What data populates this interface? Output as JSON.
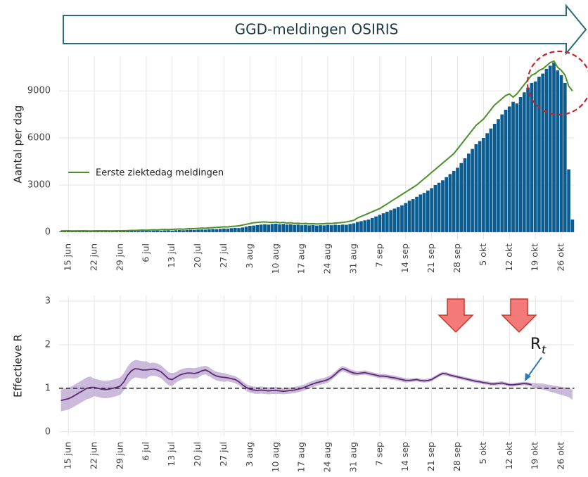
{
  "chart_data": [
    {
      "type": "bar",
      "title": "GGD-meldingen OSIRIS",
      "ylabel": "Aantal per dag",
      "categories": [
        null,
        null,
        "15 jun",
        null,
        null,
        null,
        null,
        null,
        null,
        "22 jun",
        null,
        null,
        null,
        null,
        null,
        null,
        "29 jun",
        null,
        null,
        null,
        null,
        null,
        null,
        "6 jul",
        null,
        null,
        null,
        null,
        null,
        null,
        "13 jul",
        null,
        null,
        null,
        null,
        null,
        null,
        "20 jul",
        null,
        null,
        null,
        null,
        null,
        null,
        "27 jul",
        null,
        null,
        null,
        null,
        null,
        null,
        "3 aug",
        null,
        null,
        null,
        null,
        null,
        null,
        "10 aug",
        null,
        null,
        null,
        null,
        null,
        null,
        "17 aug",
        null,
        null,
        null,
        null,
        null,
        null,
        "24 aug",
        null,
        null,
        null,
        null,
        null,
        null,
        "31 aug",
        null,
        null,
        null,
        null,
        null,
        null,
        "7 sep",
        null,
        null,
        null,
        null,
        null,
        null,
        "14 sep",
        null,
        null,
        null,
        null,
        null,
        null,
        "21 sep",
        null,
        null,
        null,
        null,
        null,
        null,
        "28 sep",
        null,
        null,
        null,
        null,
        null,
        null,
        "5 okt",
        null,
        null,
        null,
        null,
        null,
        null,
        "12 okt",
        null,
        null,
        null,
        null,
        null,
        null,
        "19 okt",
        null,
        null,
        null,
        null,
        null,
        null,
        "26 okt",
        null,
        null,
        null
      ],
      "ylim": [
        -450,
        11200
      ],
      "yticks": [
        0,
        3000,
        6000,
        9000
      ],
      "grid": true,
      "legend": "left",
      "series": [
        {
          "type": "bar",
          "color": "#0b5d91",
          "values": [
            50,
            55,
            60,
            50,
            55,
            60,
            55,
            50,
            60,
            55,
            50,
            60,
            55,
            60,
            50,
            55,
            60,
            65,
            70,
            75,
            80,
            70,
            85,
            90,
            80,
            95,
            100,
            90,
            105,
            110,
            100,
            120,
            130,
            120,
            140,
            150,
            140,
            160,
            170,
            160,
            180,
            200,
            190,
            210,
            230,
            220,
            250,
            270,
            260,
            300,
            350,
            400,
            420,
            450,
            480,
            500,
            480,
            520,
            540,
            500,
            520,
            480,
            500,
            460,
            480,
            440,
            460,
            430,
            450,
            420,
            440,
            430,
            460,
            440,
            470,
            450,
            480,
            470,
            520,
            560,
            650,
            700,
            750,
            800,
            900,
            1000,
            1100,
            1200,
            1300,
            1400,
            1500,
            1600,
            1700,
            1850,
            2000,
            2100,
            2250,
            2400,
            2500,
            2650,
            2800,
            3000,
            3150,
            3300,
            3500,
            3700,
            3900,
            4100,
            4400,
            4700,
            5000,
            5300,
            5600,
            5800,
            6000,
            6300,
            6600,
            6900,
            7200,
            7500,
            7800,
            8000,
            8300,
            8200,
            8600,
            8900,
            9200,
            9500,
            9600,
            9900,
            10100,
            10400,
            10600,
            10800,
            10300,
            10000,
            9500,
            4000,
            800
          ]
        },
        {
          "type": "line",
          "name": "Eerste ziektedag meldingen",
          "color": "#4d8f2a",
          "values": [
            80,
            80,
            85,
            75,
            80,
            80,
            85,
            80,
            75,
            80,
            85,
            80,
            85,
            80,
            80,
            90,
            90,
            95,
            100,
            110,
            110,
            120,
            130,
            120,
            140,
            150,
            140,
            160,
            170,
            160,
            180,
            190,
            200,
            190,
            210,
            230,
            220,
            240,
            260,
            250,
            270,
            290,
            300,
            320,
            340,
            330,
            360,
            380,
            400,
            450,
            500,
            550,
            600,
            620,
            640,
            650,
            630,
            620,
            640,
            600,
            620,
            580,
            600,
            560,
            570,
            540,
            560,
            530,
            540,
            520,
            530,
            540,
            560,
            550,
            580,
            590,
            620,
            650,
            700,
            750,
            900,
            1000,
            1100,
            1200,
            1300,
            1400,
            1500,
            1650,
            1800,
            1950,
            2100,
            2250,
            2400,
            2550,
            2700,
            2850,
            3000,
            3200,
            3400,
            3600,
            3800,
            4000,
            4200,
            4400,
            4600,
            4800,
            5000,
            5300,
            5600,
            5900,
            6200,
            6500,
            6800,
            7000,
            7200,
            7500,
            7800,
            8100,
            8300,
            8500,
            8700,
            8800,
            8600,
            8800,
            9100,
            9400,
            9700,
            10000,
            10100,
            10300,
            10400,
            10600,
            10800,
            10900,
            10500,
            10300,
            10000,
            9300,
            9000
          ]
        }
      ]
    },
    {
      "type": "line",
      "ylabel": "Effectieve R",
      "annotation": {
        "text": "R",
        "subscript": "t"
      },
      "categories": [
        null,
        null,
        "15 jun",
        null,
        null,
        null,
        null,
        null,
        null,
        "22 jun",
        null,
        null,
        null,
        null,
        null,
        null,
        "29 jun",
        null,
        null,
        null,
        null,
        null,
        null,
        "6 jul",
        null,
        null,
        null,
        null,
        null,
        null,
        "13 jul",
        null,
        null,
        null,
        null,
        null,
        null,
        "20 jul",
        null,
        null,
        null,
        null,
        null,
        null,
        "27 jul",
        null,
        null,
        null,
        null,
        null,
        null,
        "3 aug",
        null,
        null,
        null,
        null,
        null,
        null,
        "10 aug",
        null,
        null,
        null,
        null,
        null,
        null,
        "17 aug",
        null,
        null,
        null,
        null,
        null,
        null,
        "24 aug",
        null,
        null,
        null,
        null,
        null,
        null,
        "31 aug",
        null,
        null,
        null,
        null,
        null,
        null,
        "7 sep",
        null,
        null,
        null,
        null,
        null,
        null,
        "14 sep",
        null,
        null,
        null,
        null,
        null,
        null,
        "21 sep",
        null,
        null,
        null,
        null,
        null,
        null,
        "28 sep",
        null,
        null,
        null,
        null,
        null,
        null,
        "5 okt",
        null,
        null,
        null,
        null,
        null,
        null,
        "12 okt",
        null,
        null,
        null,
        null,
        null,
        null,
        "19 okt",
        null,
        null,
        null,
        null,
        null,
        null,
        "26 okt",
        null,
        null,
        null
      ],
      "ylim": [
        -0.1,
        3.13
      ],
      "yticks": [
        0,
        1,
        2,
        3
      ],
      "grid": true,
      "hline": 1,
      "color": "#5b2c6f",
      "values": [
        0.72,
        0.74,
        0.76,
        0.8,
        0.85,
        0.9,
        0.95,
        1.0,
        1.02,
        1.02,
        1.0,
        0.98,
        0.97,
        0.98,
        1.0,
        1.02,
        1.05,
        1.15,
        1.3,
        1.4,
        1.45,
        1.44,
        1.42,
        1.42,
        1.43,
        1.44,
        1.42,
        1.38,
        1.3,
        1.22,
        1.2,
        1.25,
        1.3,
        1.33,
        1.35,
        1.35,
        1.34,
        1.36,
        1.4,
        1.42,
        1.38,
        1.32,
        1.28,
        1.26,
        1.25,
        1.24,
        1.22,
        1.2,
        1.15,
        1.08,
        1.02,
        0.98,
        0.96,
        0.95,
        0.96,
        0.95,
        0.94,
        0.95,
        0.95,
        0.94,
        0.93,
        0.94,
        0.95,
        0.96,
        0.98,
        1.0,
        1.03,
        1.07,
        1.1,
        1.13,
        1.15,
        1.17,
        1.2,
        1.25,
        1.32,
        1.4,
        1.45,
        1.42,
        1.38,
        1.35,
        1.34,
        1.35,
        1.36,
        1.34,
        1.32,
        1.3,
        1.28,
        1.28,
        1.27,
        1.25,
        1.24,
        1.22,
        1.2,
        1.18,
        1.18,
        1.19,
        1.2,
        1.18,
        1.17,
        1.18,
        1.2,
        1.25,
        1.3,
        1.34,
        1.33,
        1.3,
        1.28,
        1.26,
        1.24,
        1.22,
        1.2,
        1.18,
        1.16,
        1.15,
        1.13,
        1.12,
        1.1,
        1.1,
        1.11,
        1.12,
        1.1,
        1.08,
        1.08,
        1.09,
        1.1,
        1.11,
        1.1,
        1.08,
        null,
        null,
        null,
        null,
        null,
        null,
        null,
        null,
        null,
        null,
        null
      ],
      "band": {
        "color": "#b9a3cf",
        "lower": [
          0.47,
          0.49,
          0.51,
          0.55,
          0.6,
          0.65,
          0.7,
          0.75,
          0.77,
          0.82,
          0.8,
          0.78,
          0.77,
          0.78,
          0.8,
          0.82,
          0.85,
          0.95,
          1.1,
          1.2,
          1.25,
          1.24,
          1.22,
          1.22,
          1.28,
          1.29,
          1.27,
          1.23,
          1.15,
          1.07,
          1.05,
          1.13,
          1.18,
          1.21,
          1.23,
          1.23,
          1.22,
          1.24,
          1.3,
          1.32,
          1.28,
          1.22,
          1.18,
          1.16,
          1.15,
          1.16,
          1.14,
          1.12,
          1.07,
          1.0,
          0.94,
          0.9,
          0.88,
          0.87,
          0.88,
          0.87,
          0.86,
          0.87,
          0.87,
          0.87,
          0.86,
          0.87,
          0.88,
          0.89,
          0.91,
          0.93,
          0.96,
          1.0,
          1.03,
          1.06,
          1.08,
          1.1,
          1.13,
          1.19,
          1.26,
          1.34,
          1.39,
          1.36,
          1.32,
          1.29,
          1.29,
          1.3,
          1.31,
          1.29,
          1.27,
          1.25,
          1.23,
          1.23,
          1.22,
          1.2,
          1.19,
          1.17,
          1.15,
          1.13,
          1.14,
          1.15,
          1.16,
          1.14,
          1.13,
          1.14,
          1.16,
          1.21,
          1.26,
          1.3,
          1.29,
          1.26,
          1.24,
          1.22,
          1.2,
          1.18,
          1.16,
          1.14,
          1.12,
          1.11,
          1.09,
          1.08,
          1.06,
          1.06,
          1.07,
          1.08,
          1.06,
          1.04,
          1.04,
          1.05,
          1.06,
          1.07,
          1.06,
          1.04,
          1.0,
          0.99,
          0.97,
          0.95,
          0.92,
          0.9,
          0.87,
          0.85,
          0.82,
          0.8,
          0.73
        ],
        "upper": [
          0.97,
          0.99,
          1.01,
          1.05,
          1.1,
          1.15,
          1.2,
          1.25,
          1.27,
          1.22,
          1.2,
          1.18,
          1.17,
          1.18,
          1.2,
          1.22,
          1.25,
          1.35,
          1.5,
          1.6,
          1.65,
          1.64,
          1.62,
          1.62,
          1.58,
          1.59,
          1.57,
          1.53,
          1.45,
          1.37,
          1.35,
          1.37,
          1.42,
          1.45,
          1.47,
          1.47,
          1.46,
          1.48,
          1.5,
          1.52,
          1.48,
          1.42,
          1.38,
          1.36,
          1.35,
          1.32,
          1.3,
          1.28,
          1.23,
          1.16,
          1.1,
          1.06,
          1.04,
          1.03,
          1.04,
          1.03,
          1.02,
          1.03,
          1.03,
          1.01,
          1.0,
          1.01,
          1.02,
          1.03,
          1.05,
          1.07,
          1.1,
          1.14,
          1.17,
          1.2,
          1.22,
          1.24,
          1.27,
          1.31,
          1.38,
          1.46,
          1.51,
          1.48,
          1.44,
          1.41,
          1.39,
          1.4,
          1.41,
          1.39,
          1.37,
          1.35,
          1.33,
          1.33,
          1.32,
          1.3,
          1.29,
          1.27,
          1.25,
          1.23,
          1.22,
          1.23,
          1.24,
          1.22,
          1.21,
          1.22,
          1.24,
          1.29,
          1.34,
          1.38,
          1.37,
          1.34,
          1.32,
          1.3,
          1.28,
          1.26,
          1.24,
          1.22,
          1.2,
          1.19,
          1.17,
          1.16,
          1.14,
          1.14,
          1.15,
          1.16,
          1.14,
          1.12,
          1.12,
          1.13,
          1.14,
          1.15,
          1.14,
          1.12,
          1.12,
          1.11,
          1.11,
          1.09,
          1.08,
          1.06,
          1.05,
          1.03,
          1.02,
          1.0,
          0.97
        ]
      }
    }
  ]
}
